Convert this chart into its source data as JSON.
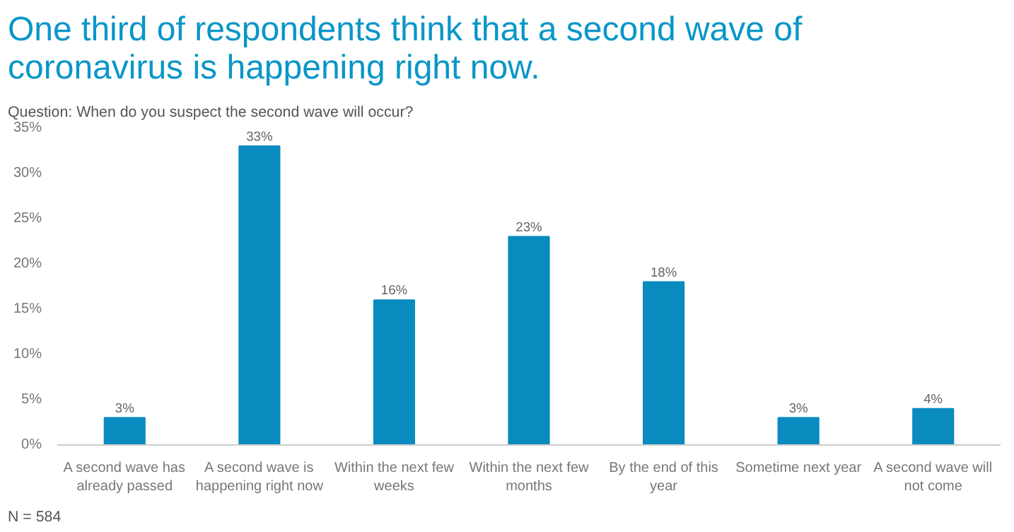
{
  "chart_data": {
    "type": "bar",
    "title": "One third of respondents think that a second wave of coronavirus is happening right now.",
    "subtitle": "Question: When do you suspect the second wave will occur?",
    "categories": [
      "A second wave has already passed",
      "A second wave is happening right now",
      "Within the next few weeks",
      "Within the next few months",
      "By the end of this year",
      "Sometime next year",
      "A second wave will not come"
    ],
    "values": [
      3,
      33,
      16,
      23,
      18,
      3,
      4
    ],
    "value_labels": [
      "3%",
      "33%",
      "16%",
      "23%",
      "18%",
      "3%",
      "4%"
    ],
    "color": "#0a8bbf",
    "ylim": [
      0,
      35
    ],
    "yticks": [
      {
        "value": 0,
        "label": "0%"
      },
      {
        "value": 5,
        "label": "5%"
      },
      {
        "value": 10,
        "label": "10%"
      },
      {
        "value": 15,
        "label": "15%"
      },
      {
        "value": 20,
        "label": "20%"
      },
      {
        "value": 25,
        "label": "25%"
      },
      {
        "value": 30,
        "label": "30%"
      },
      {
        "value": 35,
        "label": "35%"
      }
    ],
    "grid": false,
    "annotations": [
      "N = 584"
    ]
  }
}
